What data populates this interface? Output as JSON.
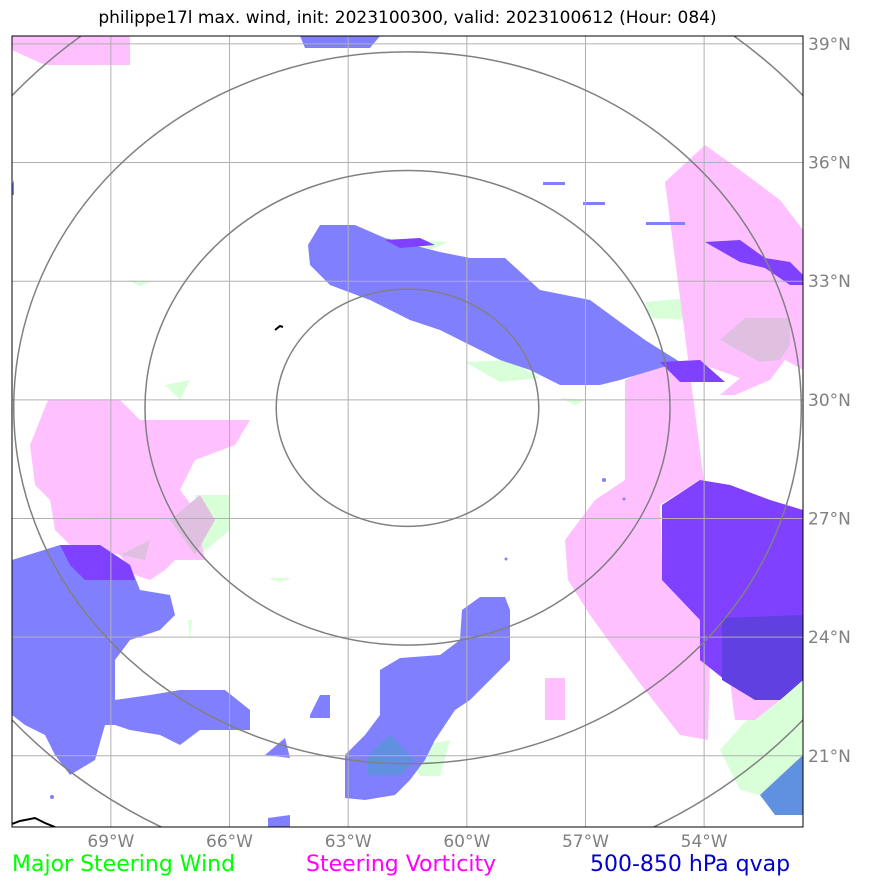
{
  "title": "philippe17l max. wind, init: 2023100300, valid: 2023100612 (Hour: 084)",
  "map": {
    "lon_range": [
      -71.5,
      -51.5
    ],
    "lat_range": [
      19.2,
      39.2
    ],
    "lon_ticks": [
      {
        "lon": -69,
        "label": "69°W"
      },
      {
        "lon": -66,
        "label": "66°W"
      },
      {
        "lon": -63,
        "label": "63°W"
      },
      {
        "lon": -60,
        "label": "60°W"
      },
      {
        "lon": -57,
        "label": "57°W"
      },
      {
        "lon": -54,
        "label": "54°W"
      }
    ],
    "lat_ticks": [
      {
        "lat": 21,
        "label": "21°N"
      },
      {
        "lat": 24,
        "label": "24°N"
      },
      {
        "lat": 27,
        "label": "27°N"
      },
      {
        "lat": 30,
        "label": "30°N"
      },
      {
        "lat": 33,
        "label": "33°N"
      },
      {
        "lat": 36,
        "label": "36°N"
      },
      {
        "lat": 39,
        "label": "39°N"
      }
    ],
    "storm_center": {
      "lon": -61.5,
      "lat": 29.8
    },
    "range_ring_radii_deg": [
      3,
      6,
      9,
      12
    ],
    "colors": {
      "grid": "#b0b0b0",
      "ring": "#808080",
      "qvap": "#8080ff",
      "vorticity": "#ffc0ff",
      "wind": "#d8ffd8",
      "overlap": "#8040ff"
    }
  },
  "legend": {
    "wind": "Major Steering Wind",
    "vorticity": "Steering Vorticity",
    "qvap": "500-850 hPa qvap"
  }
}
